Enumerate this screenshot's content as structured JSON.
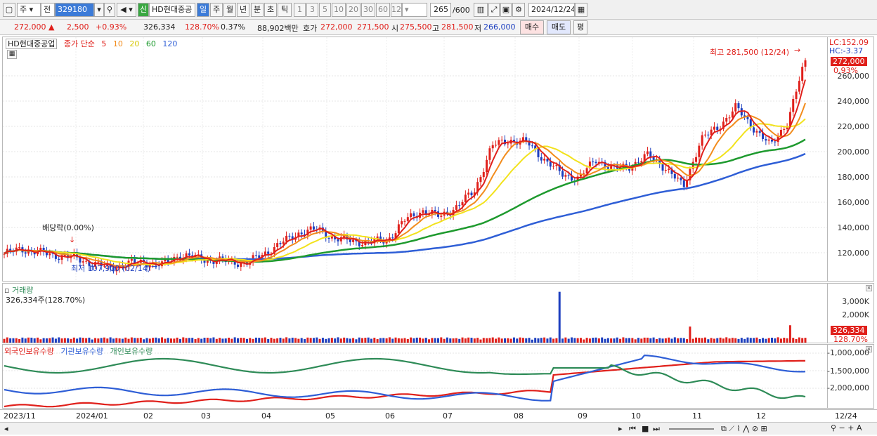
{
  "toolbar": {
    "period": "주",
    "prefix": "전",
    "code": "329180",
    "market_badge": "신",
    "name": "HD현대중공",
    "intervals": [
      "일",
      "주",
      "월",
      "년",
      "분",
      "초",
      "틱"
    ],
    "active_interval": "일",
    "numbers": [
      "1",
      "3",
      "5",
      "10",
      "20",
      "30",
      "60",
      "120"
    ],
    "count": "265",
    "count_total": "/600",
    "date": "2024/12/24"
  },
  "quote": {
    "price": "272,000",
    "change": "2,500",
    "pct": "+0.93%",
    "volume": "326,334",
    "vol_ratio": "128.70%",
    "turnover_pct": "0.37%",
    "value": "88,902백만",
    "hoga_label": "호가",
    "ask": "272,000",
    "bid": "271,500",
    "open_label": "시",
    "open": "275,500",
    "high_label": "고",
    "high": "281,500",
    "low_label": "저",
    "low": "266,000",
    "buy": "매수",
    "sell": "매도",
    "eval": "평"
  },
  "price_pane": {
    "title": "HD현대중공업",
    "ma_label": "종가 단순",
    "ma_periods": [
      "5",
      "10",
      "20",
      "60",
      "120"
    ],
    "lc": "LC:152.09",
    "hc": "HC:-3.37",
    "current_tag": "272,000",
    "current_pct": "0.93%",
    "high_note": "최고 281,500 (12/24)",
    "low_note": "최저 107,900 (02/14)",
    "dividend_note": "배당락(0.00%)",
    "y_ticks": [
      "260,000",
      "240,000",
      "220,000",
      "200,000",
      "180,000",
      "160,000",
      "140,000",
      "120,000"
    ]
  },
  "volume_pane": {
    "title": "거래량",
    "value": "326,334주(128.70%)",
    "y_ticks": [
      "3,000K",
      "2,000K"
    ],
    "tag": "326,334",
    "tag_pct": "128.70%"
  },
  "holding_pane": {
    "foreign": "외국인보유수량",
    "institution": "기관보유수량",
    "individual": "개인보유수량",
    "y_ticks": [
      "-1,000,000",
      "-1,500,000",
      "-2,000,000"
    ]
  },
  "x_axis": [
    "2023/11",
    "2024/01",
    "02",
    "03",
    "04",
    "05",
    "06",
    "07",
    "08",
    "09",
    "10",
    "11",
    "12",
    "12/24"
  ],
  "colors": {
    "up": "#e0201b",
    "down": "#1d3fbf",
    "ma5": "#e0201b",
    "ma10": "#f28c1c",
    "ma20": "#f2e21c",
    "ma60": "#1e9a2e",
    "ma120": "#2e5ed6",
    "foreign": "#e0201b",
    "institution": "#2e5ed6",
    "individual": "#2e8b57"
  },
  "chart_data": {
    "type": "line",
    "series": [
      {
        "name": "종가",
        "y": [
          121000,
          125000,
          122000,
          120000,
          118000,
          114000,
          110000,
          113000,
          115000,
          112000,
          120000,
          118000,
          116000,
          115000,
          114000,
          122000,
          130000,
          138000,
          140000,
          133000,
          131000,
          130000,
          132000,
          147000,
          155000,
          150000,
          158000,
          170000,
          205000,
          210000,
          208000,
          195000,
          183000,
          180000,
          195000,
          187000,
          190000,
          198000,
          188000,
          173000,
          210000,
          220000,
          235000,
          220000,
          205000,
          225000,
          272000
        ]
      },
      {
        "name": "5",
        "y": []
      },
      {
        "name": "10",
        "y": []
      },
      {
        "name": "20",
        "y": []
      },
      {
        "name": "60",
        "y": []
      },
      {
        "name": "120",
        "y": []
      }
    ],
    "ylim": [
      100000,
      290000
    ]
  }
}
